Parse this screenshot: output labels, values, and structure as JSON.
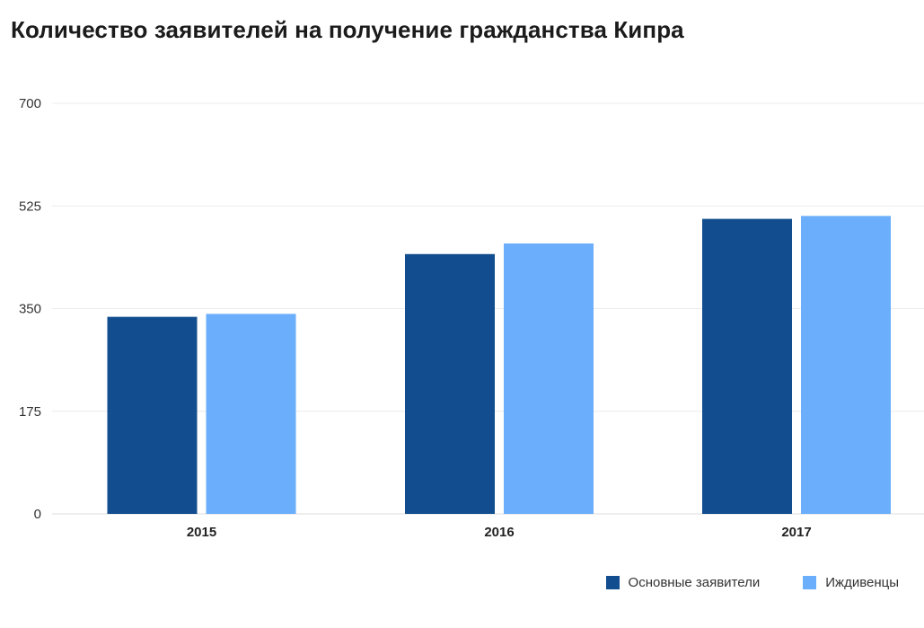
{
  "chart_data": {
    "type": "bar",
    "title": "Количество заявителей на получение гражданства Кипра",
    "xlabel": "",
    "ylabel": "",
    "categories": [
      "2015",
      "2016",
      "2017"
    ],
    "ylim": [
      0,
      700
    ],
    "yticks": [
      "0",
      "175",
      "350",
      "525",
      "700"
    ],
    "grid": true,
    "legend_position": "bottom-right",
    "series": [
      {
        "name": "Основные заявители",
        "color": "#124e8f",
        "values": [
          336,
          443,
          503
        ]
      },
      {
        "name": "Иждивенцы",
        "color": "#6aaefc",
        "values": [
          341,
          461,
          508
        ]
      }
    ]
  }
}
